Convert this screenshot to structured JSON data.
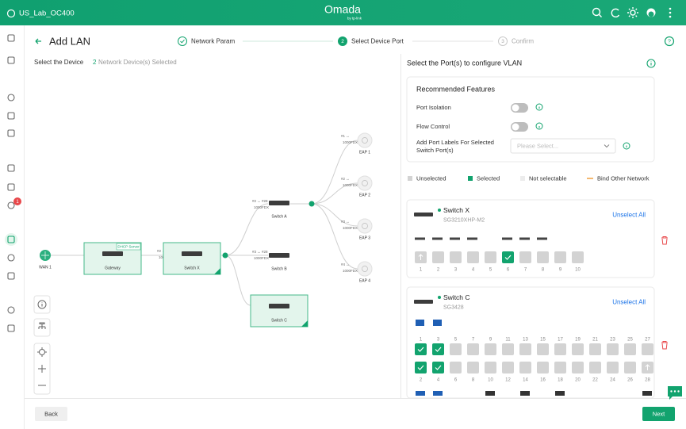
{
  "header": {
    "site": "US_Lab_OC400",
    "logo": "Omada",
    "logo_sub": "by tp-link"
  },
  "sidebar": {
    "badge": "1"
  },
  "page": {
    "title": "Add LAN",
    "steps": [
      {
        "label": "Network Param",
        "state": "done"
      },
      {
        "number": "2",
        "label": "Select Device Port",
        "state": "active"
      },
      {
        "number": "3",
        "label": "Confirm",
        "state": "todo"
      }
    ]
  },
  "device_panel": {
    "label": "Select the Device",
    "count": "2",
    "count_text": "Network Device(s) Selected"
  },
  "topology": {
    "nodes": [
      {
        "label": "WAN 1",
        "kind": "wan"
      },
      {
        "label": "Gateway",
        "kind": "gateway",
        "tag": "DHCP Server",
        "boxed": true
      },
      {
        "label": "Switch X",
        "kind": "switch",
        "boxed": true,
        "selected": true
      },
      {
        "label": "Switch A",
        "kind": "switch"
      },
      {
        "label": "Switch B",
        "kind": "switch"
      },
      {
        "label": "Switch C",
        "kind": "switch",
        "boxed": true,
        "selected": true
      },
      {
        "label": "EAP 1",
        "kind": "ap"
      },
      {
        "label": "EAP 2",
        "kind": "ap"
      },
      {
        "label": "EAP 3",
        "kind": "ap"
      },
      {
        "label": "EAP 4",
        "kind": "ap"
      }
    ],
    "links": [
      {
        "ports": "— ↔ #1",
        "speed": "1000FDX"
      },
      {
        "ports": "#2 ↔ #1",
        "speed": "1000FDX"
      },
      {
        "ports": "#2 ↔ #28",
        "speed": "1000FDX"
      },
      {
        "ports": "#3 ↔ #28",
        "speed": "1000FDX"
      },
      {
        "ports": "#4 ↔ #26",
        "speed": "1000FDX"
      },
      {
        "ports": "#1 ↔",
        "speed": "1000FDX"
      },
      {
        "ports": "#2 ↔",
        "speed": "1000FDX"
      },
      {
        "ports": "#3 ↔",
        "speed": "1000FDX"
      },
      {
        "ports": "#4 ↔",
        "speed": "1000FDX"
      }
    ]
  },
  "port_panel": {
    "title": "Select the Port(s) to configure VLAN",
    "features": {
      "title": "Recommended Features",
      "port_isolation": "Port Isolation",
      "flow_control": "Flow Control",
      "labels_line1": "Add Port Labels For Selected",
      "labels_line2": "Switch Port(s)",
      "placeholder": "Please Select..."
    },
    "legend": [
      {
        "label": "Unselected",
        "color": "#d3d3d3"
      },
      {
        "label": "Selected",
        "color": "#12a36e"
      },
      {
        "label": "Not selectable",
        "color": "#ececec"
      },
      {
        "label": "Bind Other Network",
        "color": "#f0a040"
      }
    ],
    "switches": [
      {
        "name": "Switch X",
        "model": "SG3210XHP-M2",
        "action": "Unselect All",
        "rows": [
          [
            {
              "number": 1,
              "state": "uplink"
            },
            {
              "number": 2,
              "state": "unselected"
            },
            {
              "number": 3,
              "state": "unselected"
            },
            {
              "number": 4,
              "state": "unselected"
            },
            {
              "number": 5,
              "state": "unselected"
            },
            {
              "number": 6,
              "state": "selected"
            },
            {
              "number": 7,
              "state": "unselected"
            },
            {
              "number": 8,
              "state": "unselected"
            },
            {
              "number": 9,
              "state": "unselected"
            },
            {
              "number": 10,
              "state": "unselected"
            }
          ]
        ]
      },
      {
        "name": "Switch C",
        "model": "SG3428",
        "action": "Unselect All",
        "rows": [
          [
            {
              "number": 1,
              "state": "selected"
            },
            {
              "number": 3,
              "state": "selected"
            },
            {
              "number": 5,
              "state": "unselected"
            },
            {
              "number": 7,
              "state": "unselected"
            },
            {
              "number": 9,
              "state": "unselected"
            },
            {
              "number": 11,
              "state": "unselected"
            },
            {
              "number": 13,
              "state": "unselected"
            },
            {
              "number": 15,
              "state": "unselected"
            },
            {
              "number": 17,
              "state": "unselected"
            },
            {
              "number": 19,
              "state": "unselected"
            },
            {
              "number": 21,
              "state": "unselected"
            },
            {
              "number": 23,
              "state": "unselected"
            },
            {
              "number": 25,
              "state": "unselected"
            },
            {
              "number": 27,
              "state": "unselected"
            }
          ],
          [
            {
              "number": 2,
              "state": "selected"
            },
            {
              "number": 4,
              "state": "selected"
            },
            {
              "number": 6,
              "state": "unselected"
            },
            {
              "number": 8,
              "state": "unselected"
            },
            {
              "number": 10,
              "state": "unselected"
            },
            {
              "number": 12,
              "state": "unselected"
            },
            {
              "number": 14,
              "state": "unselected"
            },
            {
              "number": 16,
              "state": "unselected"
            },
            {
              "number": 18,
              "state": "unselected"
            },
            {
              "number": 20,
              "state": "unselected"
            },
            {
              "number": 22,
              "state": "unselected"
            },
            {
              "number": 24,
              "state": "unselected"
            },
            {
              "number": 26,
              "state": "unselected"
            },
            {
              "number": 28,
              "state": "uplink"
            }
          ]
        ]
      }
    ]
  },
  "footer": {
    "back": "Back",
    "next": "Next"
  }
}
